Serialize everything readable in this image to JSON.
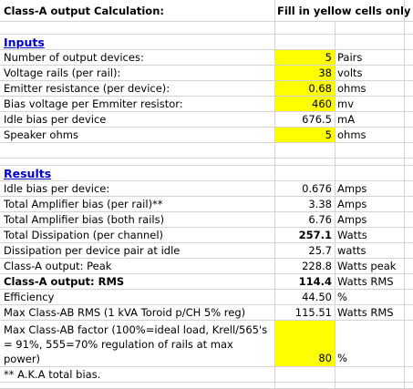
{
  "header": {
    "title": "Class-A output Calculation:",
    "note": "Fill in yellow cells only"
  },
  "inputs": {
    "heading": "Inputs",
    "rows": [
      {
        "label": "Number of output devices:",
        "value": "5",
        "unit": "Pairs",
        "yellow": true
      },
      {
        "label": "Voltage rails (per rail):",
        "value": "38",
        "unit": "volts",
        "yellow": true
      },
      {
        "label": "Emitter resistance (per device):",
        "value": "0.68",
        "unit": "ohms",
        "yellow": true
      },
      {
        "label": "Bias voltage per Emmiter resistor:",
        "value": "460",
        "unit": "mv",
        "yellow": true
      },
      {
        "label": "Idle bias per device",
        "value": "676.5",
        "unit": "mA",
        "yellow": false
      },
      {
        "label": "Speaker ohms",
        "value": "5",
        "unit": "ohms",
        "yellow": true
      }
    ]
  },
  "results": {
    "heading": "Results",
    "rows": [
      {
        "label": "Idle bias per device:",
        "value": "0.676",
        "unit": "Amps",
        "bold": false
      },
      {
        "label": "Total Amplifier bias (per rail)**",
        "value": "3.38",
        "unit": "Amps",
        "bold": false
      },
      {
        "label": "Total Amplifier bias (both rails)",
        "value": "6.76",
        "unit": "Amps",
        "bold": false
      },
      {
        "label": "Total Dissipation (per channel)",
        "value": "257.1",
        "unit": "Watts",
        "bold": false,
        "boldValue": true
      },
      {
        "label": "Dissipation per device pair at idle",
        "value": "25.7",
        "unit": "watts",
        "bold": false
      },
      {
        "label": "Class-A output: Peak",
        "value": "228.8",
        "unit": "Watts peak",
        "bold": false
      },
      {
        "label": "Class-A output: RMS",
        "value": "114.4",
        "unit": "Watts RMS",
        "bold": true,
        "boldValue": true
      },
      {
        "label": "Efficiency",
        "value": "44.50",
        "unit": "%",
        "bold": false
      },
      {
        "label": "Max Class-AB RMS (1 kVA Toroid p/CH 5% reg)",
        "value": "115.51",
        "unit": "Watts RMS",
        "bold": false
      }
    ],
    "factor": {
      "label": "Max Class-AB factor (100%=ideal load, Krell/565's = 91%, 555=70% regulation of rails at max power)",
      "value": "80",
      "unit": "%"
    },
    "footnote": "** A.K.A total bias."
  }
}
